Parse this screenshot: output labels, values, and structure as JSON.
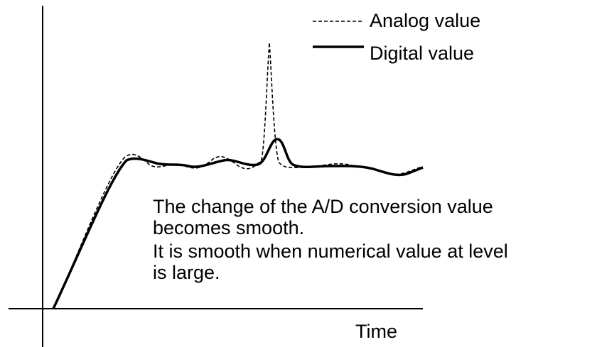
{
  "legend": {
    "analog": "Analog value",
    "digital": "Digital value"
  },
  "annotation": {
    "lines": [
      "The change of the A/D conversion value",
      "becomes smooth.",
      "It is smooth when numerical value at level",
      "is large."
    ]
  },
  "x_axis_label": "Time"
}
